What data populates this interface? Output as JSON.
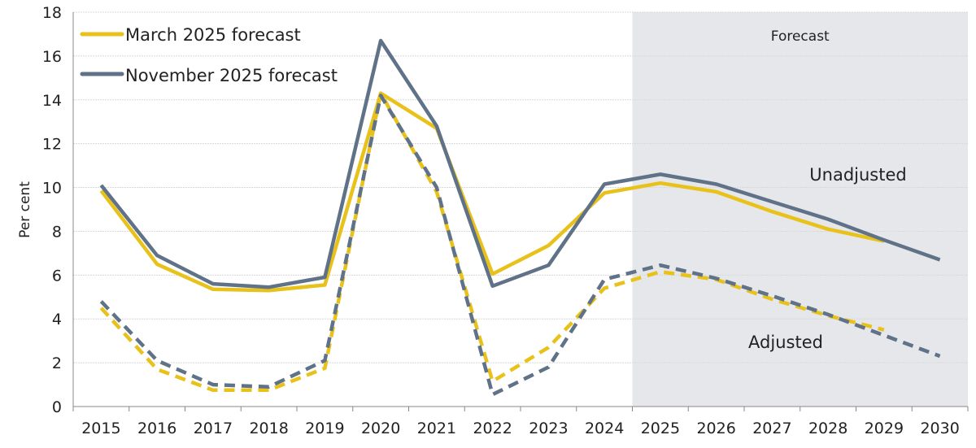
{
  "chart_data": {
    "type": "line",
    "ylabel": "Per cent",
    "ylim": [
      0,
      18
    ],
    "yticks": [
      0,
      2,
      4,
      6,
      8,
      10,
      12,
      14,
      16,
      18
    ],
    "grid": true,
    "legend_placement": "top-left",
    "categories": [
      "2015",
      "2016",
      "2017",
      "2018",
      "2019",
      "2020",
      "2021",
      "2022",
      "2023",
      "2024",
      "2025",
      "2026",
      "2027",
      "2028",
      "2029",
      "2030"
    ],
    "shaded_region": {
      "label": "Forecast",
      "from": "2025",
      "to": "2030",
      "color": "#e6e7eb"
    },
    "annotations": [
      {
        "text": "Unadjusted",
        "near": "2027-2028"
      },
      {
        "text": "Adjusted",
        "near": "2026-2027"
      }
    ],
    "legend": [
      {
        "name": "March 2025 forecast",
        "color": "#e8c21a"
      },
      {
        "name": "November 2025 forecast",
        "color": "#5f7288"
      }
    ],
    "series": [
      {
        "name": "March 2025 forecast",
        "variant": "Unadjusted",
        "style": "solid",
        "color": "#e8c21a",
        "values": [
          9.85,
          6.5,
          5.35,
          5.3,
          5.55,
          14.3,
          12.7,
          6.05,
          7.35,
          9.75,
          10.2,
          9.8,
          8.9,
          8.1,
          7.55,
          null
        ]
      },
      {
        "name": "November 2025 forecast",
        "variant": "Unadjusted",
        "style": "solid",
        "color": "#5f7288",
        "values": [
          10.1,
          6.9,
          5.6,
          5.45,
          5.9,
          16.7,
          12.8,
          5.5,
          6.45,
          10.15,
          10.6,
          10.15,
          9.35,
          8.55,
          7.6,
          6.7
        ]
      },
      {
        "name": "March 2025 forecast",
        "variant": "Adjusted",
        "style": "dashed",
        "color": "#e8c21a",
        "values": [
          4.5,
          1.7,
          0.75,
          0.75,
          1.75,
          14.3,
          9.8,
          1.15,
          2.7,
          5.4,
          6.15,
          5.8,
          4.9,
          4.15,
          3.5,
          null
        ]
      },
      {
        "name": "November 2025 forecast",
        "variant": "Adjusted",
        "style": "dashed",
        "color": "#5f7288",
        "values": [
          4.8,
          2.1,
          1.0,
          0.9,
          2.1,
          14.2,
          10.0,
          0.55,
          1.8,
          5.8,
          6.45,
          5.85,
          5.05,
          4.2,
          3.25,
          2.3
        ]
      }
    ]
  }
}
